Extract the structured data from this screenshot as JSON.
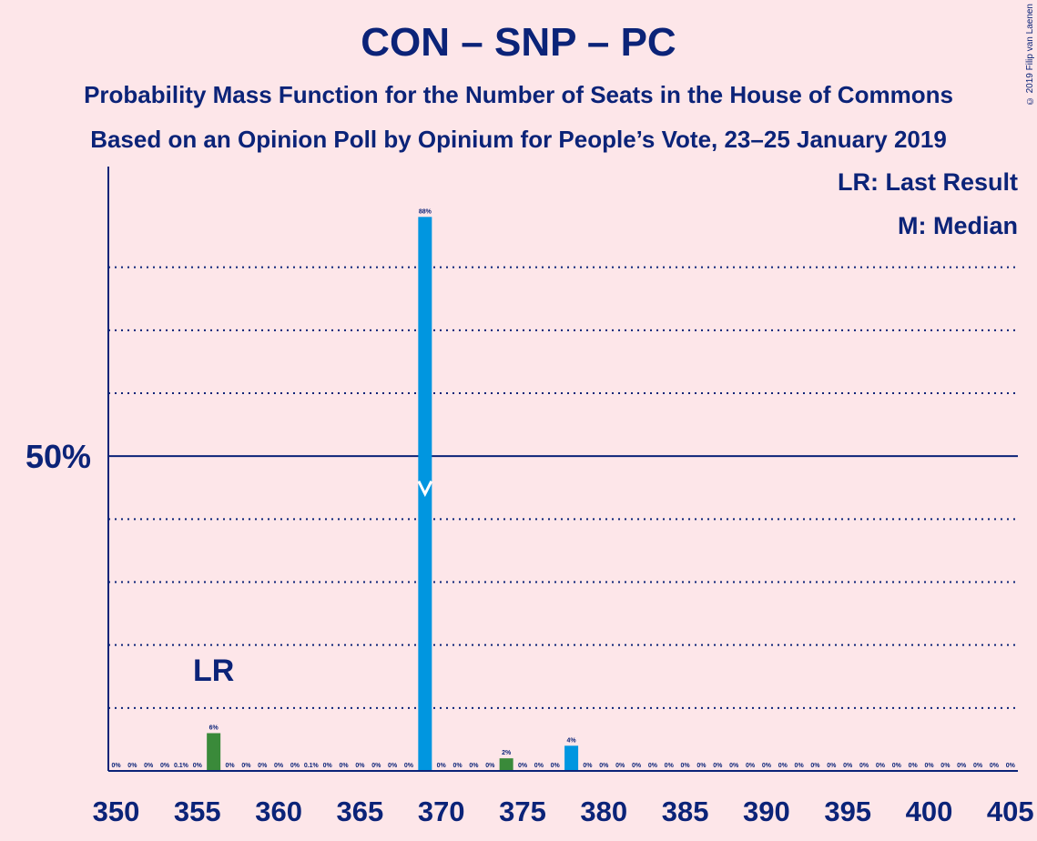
{
  "title": "CON – SNP – PC",
  "subtitle_1": "Probability Mass Function for the Number of Seats in the House of Commons",
  "subtitle_2": "Based on an Opinion Poll by Opinium for People’s Vote, 23–25 January 2019",
  "copyright": "© 2019 Filip van Laenen",
  "legend": {
    "last_result": "LR: Last Result",
    "median": "M: Median"
  },
  "colors": {
    "background": "#fde6e9",
    "text": "#0b2378",
    "bar_default": "#0096e0",
    "bar_last_result": "#3a8a3a"
  },
  "chart_data": {
    "type": "bar",
    "x_min": 350,
    "x_max": 405,
    "ylim": [
      0,
      96
    ],
    "y_tick_label": "50%",
    "y_tick_value": 50,
    "dotted_grid": [
      10,
      20,
      30,
      40,
      60,
      70,
      80
    ],
    "x_tick_labels": [
      "350",
      "355",
      "360",
      "365",
      "370",
      "375",
      "380",
      "385",
      "390",
      "395",
      "400",
      "405"
    ],
    "last_result_seat": 356,
    "last_result_label": "LR",
    "median_seat": 369,
    "median_value": 44,
    "bars": [
      {
        "seat": 350,
        "value": 0,
        "label": "0%"
      },
      {
        "seat": 351,
        "value": 0,
        "label": "0%"
      },
      {
        "seat": 352,
        "value": 0,
        "label": "0%"
      },
      {
        "seat": 353,
        "value": 0,
        "label": "0%"
      },
      {
        "seat": 354,
        "value": 0.1,
        "label": "0.1%"
      },
      {
        "seat": 355,
        "value": 0,
        "label": "0%"
      },
      {
        "seat": 356,
        "value": 6,
        "label": "6%"
      },
      {
        "seat": 357,
        "value": 0,
        "label": "0%"
      },
      {
        "seat": 358,
        "value": 0,
        "label": "0%"
      },
      {
        "seat": 359,
        "value": 0,
        "label": "0%"
      },
      {
        "seat": 360,
        "value": 0,
        "label": "0%"
      },
      {
        "seat": 361,
        "value": 0,
        "label": "0%"
      },
      {
        "seat": 362,
        "value": 0.1,
        "label": "0.1%"
      },
      {
        "seat": 363,
        "value": 0,
        "label": "0%"
      },
      {
        "seat": 364,
        "value": 0,
        "label": "0%"
      },
      {
        "seat": 365,
        "value": 0,
        "label": "0%"
      },
      {
        "seat": 366,
        "value": 0,
        "label": "0%"
      },
      {
        "seat": 367,
        "value": 0,
        "label": "0%"
      },
      {
        "seat": 368,
        "value": 0,
        "label": "0%"
      },
      {
        "seat": 369,
        "value": 88,
        "label": "88%"
      },
      {
        "seat": 370,
        "value": 0,
        "label": "0%"
      },
      {
        "seat": 371,
        "value": 0,
        "label": "0%"
      },
      {
        "seat": 372,
        "value": 0,
        "label": "0%"
      },
      {
        "seat": 373,
        "value": 0,
        "label": "0%"
      },
      {
        "seat": 374,
        "value": 2,
        "label": "2%"
      },
      {
        "seat": 375,
        "value": 0,
        "label": "0%"
      },
      {
        "seat": 376,
        "value": 0,
        "label": "0%"
      },
      {
        "seat": 377,
        "value": 0,
        "label": "0%"
      },
      {
        "seat": 378,
        "value": 4,
        "label": "4%"
      },
      {
        "seat": 379,
        "value": 0,
        "label": "0%"
      },
      {
        "seat": 380,
        "value": 0,
        "label": "0%"
      },
      {
        "seat": 381,
        "value": 0,
        "label": "0%"
      },
      {
        "seat": 382,
        "value": 0,
        "label": "0%"
      },
      {
        "seat": 383,
        "value": 0,
        "label": "0%"
      },
      {
        "seat": 384,
        "value": 0,
        "label": "0%"
      },
      {
        "seat": 385,
        "value": 0,
        "label": "0%"
      },
      {
        "seat": 386,
        "value": 0,
        "label": "0%"
      },
      {
        "seat": 387,
        "value": 0,
        "label": "0%"
      },
      {
        "seat": 388,
        "value": 0,
        "label": "0%"
      },
      {
        "seat": 389,
        "value": 0,
        "label": "0%"
      },
      {
        "seat": 390,
        "value": 0,
        "label": "0%"
      },
      {
        "seat": 391,
        "value": 0,
        "label": "0%"
      },
      {
        "seat": 392,
        "value": 0,
        "label": "0%"
      },
      {
        "seat": 393,
        "value": 0,
        "label": "0%"
      },
      {
        "seat": 394,
        "value": 0,
        "label": "0%"
      },
      {
        "seat": 395,
        "value": 0,
        "label": "0%"
      },
      {
        "seat": 396,
        "value": 0,
        "label": "0%"
      },
      {
        "seat": 397,
        "value": 0,
        "label": "0%"
      },
      {
        "seat": 398,
        "value": 0,
        "label": "0%"
      },
      {
        "seat": 399,
        "value": 0,
        "label": "0%"
      },
      {
        "seat": 400,
        "value": 0,
        "label": "0%"
      },
      {
        "seat": 401,
        "value": 0,
        "label": "0%"
      },
      {
        "seat": 402,
        "value": 0,
        "label": "0%"
      },
      {
        "seat": 403,
        "value": 0,
        "label": "0%"
      },
      {
        "seat": 404,
        "value": 0,
        "label": "0%"
      },
      {
        "seat": 405,
        "value": 0,
        "label": "0%"
      }
    ]
  }
}
